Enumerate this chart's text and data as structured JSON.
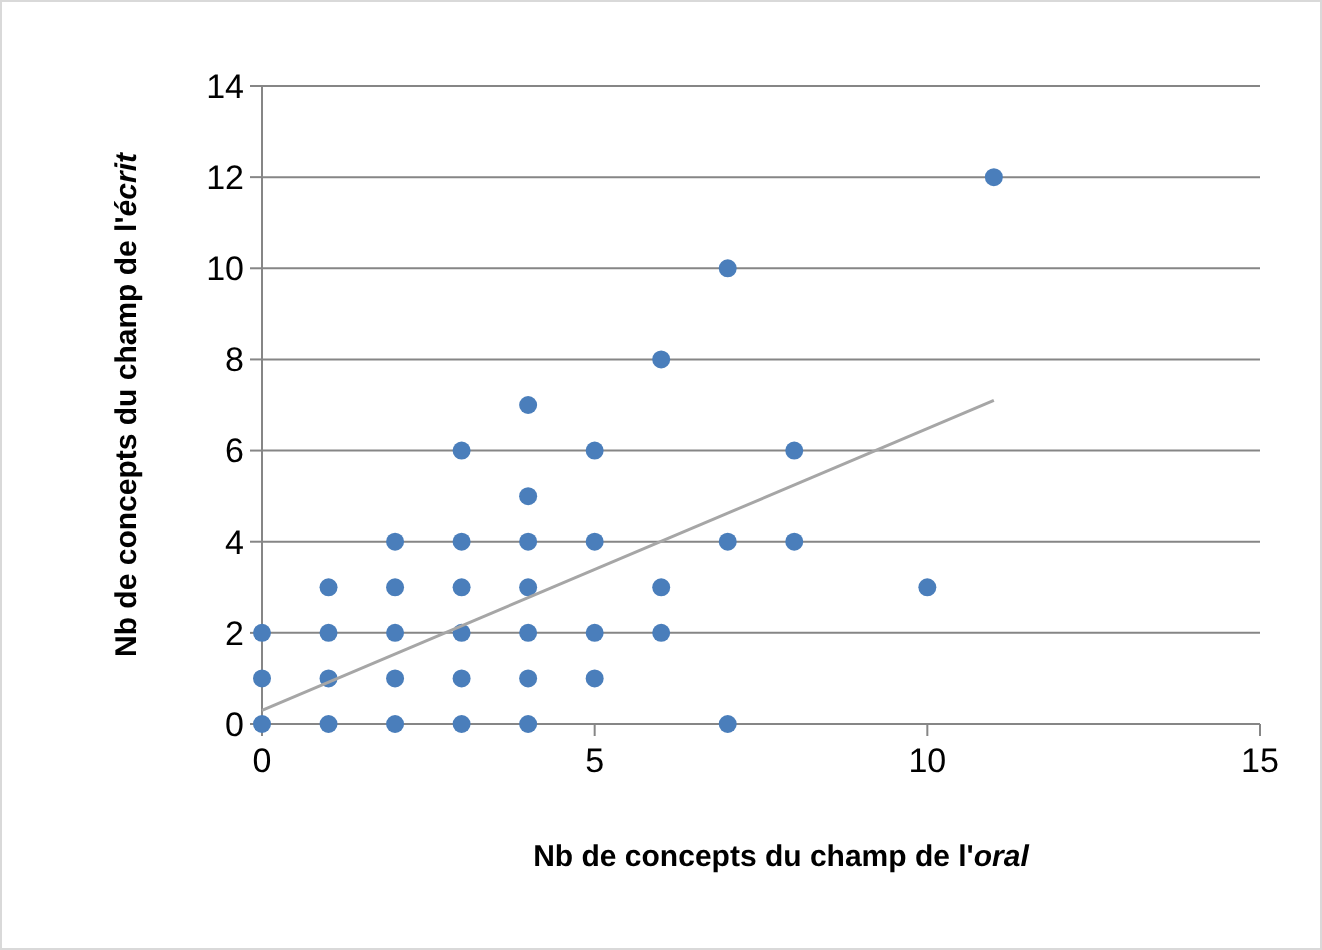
{
  "chart_data": {
    "type": "scatter",
    "xlabel": "Nb de concepts du champ de l'oral",
    "ylabel": "Nb de concepts du champ de l'écrit",
    "xlim": [
      0,
      15
    ],
    "xticks": [
      0,
      5,
      10,
      15
    ],
    "ylim": [
      0,
      14
    ],
    "yticks": [
      0,
      2,
      4,
      6,
      8,
      10,
      12,
      14
    ],
    "grid": "y",
    "series": [
      {
        "color": "#4a7ebb",
        "marker": "circle",
        "x": [
          0,
          0,
          0,
          1,
          1,
          1,
          1,
          2,
          2,
          2,
          2,
          2,
          3,
          3,
          3,
          3,
          3,
          3,
          4,
          4,
          4,
          4,
          4,
          4,
          4,
          5,
          5,
          5,
          5,
          6,
          6,
          6,
          7,
          7,
          7,
          8,
          8,
          10,
          11
        ],
        "values": [
          0,
          1,
          2,
          0,
          1,
          2,
          3,
          0,
          1,
          2,
          3,
          4,
          0,
          1,
          2,
          3,
          4,
          6,
          0,
          1,
          2,
          3,
          4,
          5,
          7,
          1,
          2,
          4,
          6,
          2,
          3,
          8,
          0,
          4,
          10,
          4,
          6,
          3,
          12
        ]
      },
      {
        "type": "line",
        "color": "#a6a6a6",
        "x": [
          0,
          11
        ],
        "values": [
          0.3,
          7.1
        ],
        "marker": "none"
      }
    ]
  }
}
